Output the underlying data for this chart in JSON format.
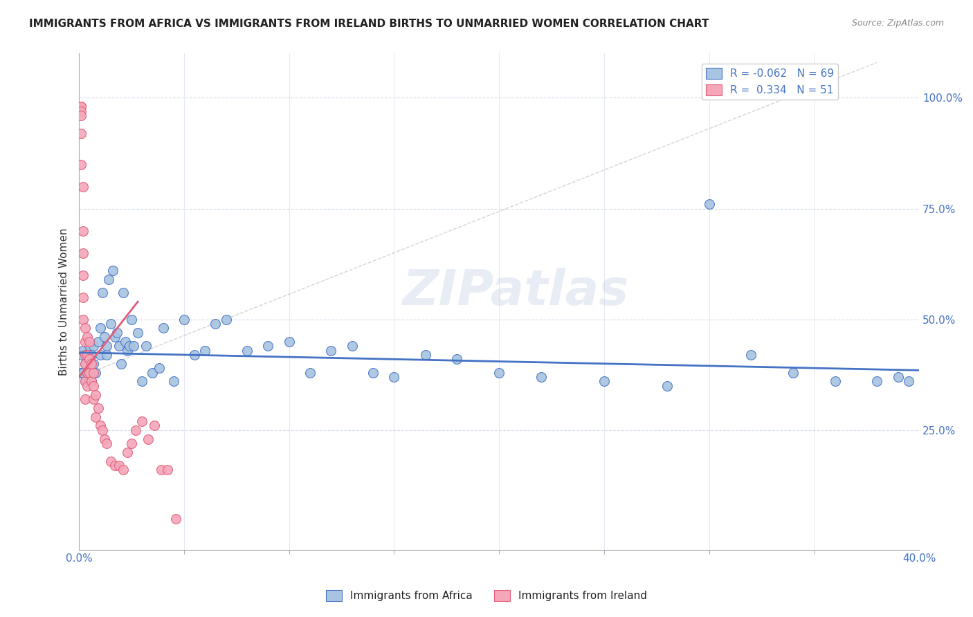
{
  "title": "IMMIGRANTS FROM AFRICA VS IMMIGRANTS FROM IRELAND BIRTHS TO UNMARRIED WOMEN CORRELATION CHART",
  "source": "Source: ZipAtlas.com",
  "ylabel": "Births to Unmarried Women",
  "ytick_labels": [
    "100.0%",
    "75.0%",
    "50.0%",
    "25.0%"
  ],
  "ytick_positions": [
    1.0,
    0.75,
    0.5,
    0.25
  ],
  "xlim": [
    0.0,
    0.4
  ],
  "ylim": [
    -0.02,
    1.1
  ],
  "legend_africa": "R = -0.062   N = 69",
  "legend_ireland": "R =  0.334   N = 51",
  "legend_africa_label": "Immigrants from Africa",
  "legend_ireland_label": "Immigrants from Ireland",
  "africa_color": "#a8c4e0",
  "ireland_color": "#f4a7b9",
  "africa_line_color": "#4472c4",
  "ireland_line_color": "#e05c78",
  "ireland_dash_color": "#c8c8c8",
  "background_color": "#ffffff",
  "watermark": "ZIPatlas",
  "africa_x": [
    0.001,
    0.001,
    0.002,
    0.002,
    0.003,
    0.003,
    0.004,
    0.004,
    0.005,
    0.005,
    0.005,
    0.006,
    0.006,
    0.007,
    0.007,
    0.008,
    0.009,
    0.01,
    0.01,
    0.011,
    0.012,
    0.013,
    0.013,
    0.014,
    0.015,
    0.016,
    0.017,
    0.018,
    0.019,
    0.02,
    0.021,
    0.022,
    0.023,
    0.024,
    0.025,
    0.026,
    0.028,
    0.03,
    0.032,
    0.035,
    0.038,
    0.04,
    0.045,
    0.05,
    0.055,
    0.06,
    0.065,
    0.07,
    0.08,
    0.09,
    0.1,
    0.11,
    0.12,
    0.13,
    0.14,
    0.15,
    0.165,
    0.18,
    0.2,
    0.22,
    0.25,
    0.28,
    0.3,
    0.32,
    0.34,
    0.36,
    0.38,
    0.39,
    0.395
  ],
  "africa_y": [
    0.42,
    0.38,
    0.43,
    0.38,
    0.4,
    0.36,
    0.42,
    0.38,
    0.44,
    0.41,
    0.37,
    0.42,
    0.36,
    0.44,
    0.4,
    0.38,
    0.45,
    0.48,
    0.42,
    0.56,
    0.46,
    0.42,
    0.44,
    0.59,
    0.49,
    0.61,
    0.46,
    0.47,
    0.44,
    0.4,
    0.56,
    0.45,
    0.43,
    0.44,
    0.5,
    0.44,
    0.47,
    0.36,
    0.44,
    0.38,
    0.39,
    0.48,
    0.36,
    0.5,
    0.42,
    0.43,
    0.49,
    0.5,
    0.43,
    0.44,
    0.45,
    0.38,
    0.43,
    0.44,
    0.38,
    0.37,
    0.42,
    0.41,
    0.38,
    0.37,
    0.36,
    0.35,
    0.76,
    0.42,
    0.38,
    0.36,
    0.36,
    0.37,
    0.36
  ],
  "ireland_x": [
    0.001,
    0.001,
    0.001,
    0.001,
    0.001,
    0.001,
    0.001,
    0.002,
    0.002,
    0.002,
    0.002,
    0.002,
    0.002,
    0.003,
    0.003,
    0.003,
    0.003,
    0.003,
    0.003,
    0.004,
    0.004,
    0.004,
    0.004,
    0.005,
    0.005,
    0.005,
    0.006,
    0.006,
    0.007,
    0.007,
    0.007,
    0.008,
    0.008,
    0.009,
    0.01,
    0.011,
    0.012,
    0.013,
    0.015,
    0.017,
    0.019,
    0.021,
    0.023,
    0.025,
    0.027,
    0.03,
    0.033,
    0.036,
    0.039,
    0.042,
    0.046
  ],
  "ireland_y": [
    0.98,
    0.98,
    0.98,
    0.97,
    0.96,
    0.92,
    0.85,
    0.8,
    0.7,
    0.65,
    0.6,
    0.55,
    0.5,
    0.48,
    0.45,
    0.42,
    0.4,
    0.36,
    0.32,
    0.46,
    0.42,
    0.38,
    0.35,
    0.45,
    0.41,
    0.38,
    0.4,
    0.36,
    0.38,
    0.35,
    0.32,
    0.33,
    0.28,
    0.3,
    0.26,
    0.25,
    0.23,
    0.22,
    0.18,
    0.17,
    0.17,
    0.16,
    0.2,
    0.22,
    0.25,
    0.27,
    0.23,
    0.26,
    0.16,
    0.16,
    0.05
  ]
}
